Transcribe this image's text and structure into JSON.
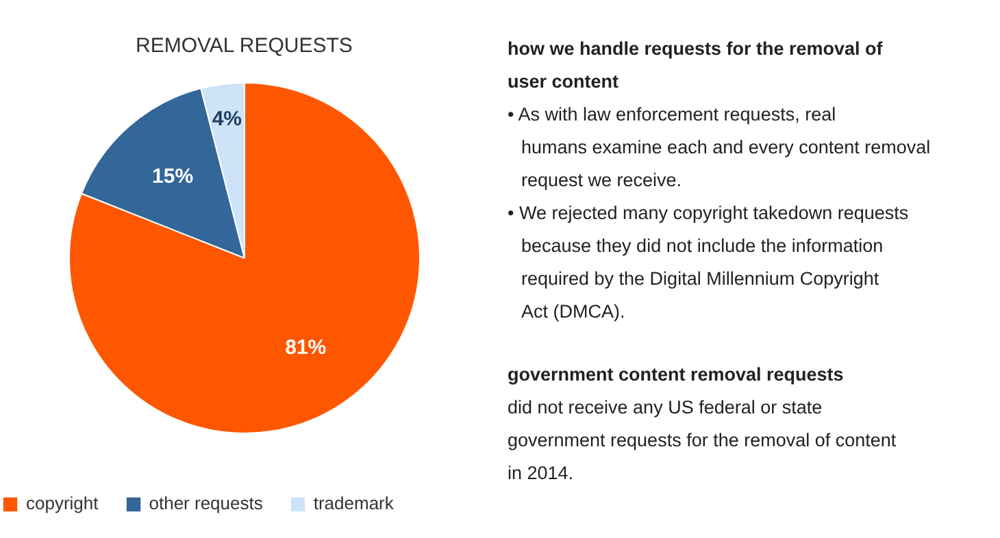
{
  "chart_data": {
    "type": "pie",
    "title": "REMOVAL REQUESTS",
    "categories": [
      "copyright",
      "other requests",
      "trademark"
    ],
    "values": [
      81,
      15,
      4
    ],
    "value_labels": [
      "81%",
      "15%",
      "4%"
    ],
    "colors": [
      "#ff5700",
      "#336699",
      "#cee3f8"
    ],
    "legend": "bottom",
    "annotations": [
      "how we handle requests for the removal of user content",
      "• As with law enforcement requests, real humans examine each and every content removal request we receive.",
      "• We rejected many copyright takedown requests because they did not include the information required by the Digital Millennium Copyright Act (DMCA).",
      "government content removal requests",
      "did not receive any US federal or state government requests for the removal of content in 2014."
    ]
  }
}
